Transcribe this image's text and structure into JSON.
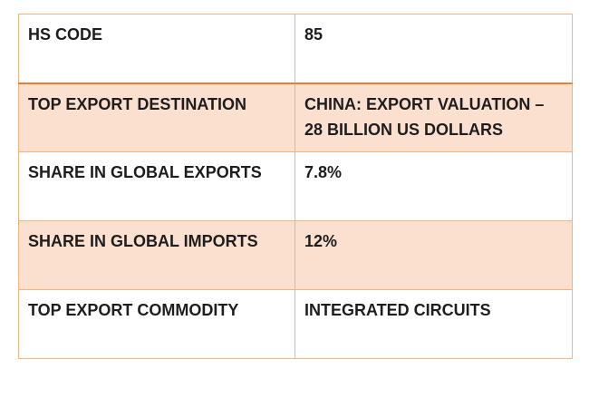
{
  "table": {
    "rows": [
      [
        "HS CODE",
        "85"
      ],
      [
        "TOP EXPORT DESTINATION",
        "CHINA: EXPORT VALUATION – 28 BILLION US DOLLARS"
      ],
      [
        "SHARE IN GLOBAL EXPORTS",
        "7.8%"
      ],
      [
        "SHARE IN GLOBAL IMPORTS",
        "12%"
      ],
      [
        "TOP EXPORT COMMODITY",
        "INTEGRATED CIRCUITS"
      ]
    ]
  }
}
